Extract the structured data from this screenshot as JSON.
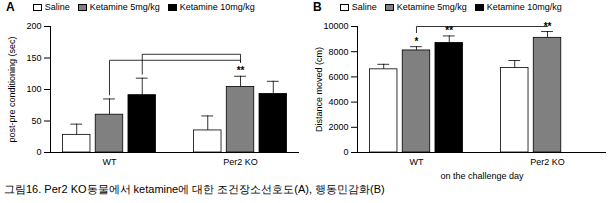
{
  "caption": "그림16. Per2 KO동물에서 ketamine에 대한 조건장소선호도(A), 행동민감화(B)",
  "chart_data": [
    {
      "type": "bar",
      "title": "A",
      "ylabel": "post-pre conditioning (sec)",
      "categories": [
        "WT",
        "Per2 KO"
      ],
      "series": [
        {
          "name": "Saline",
          "color": "#ffffff",
          "values": [
            28,
            35
          ],
          "errors": [
            17,
            23
          ]
        },
        {
          "name": "Ketamine 5mg/kg",
          "color": "#808080",
          "values": [
            60,
            104
          ],
          "errors": [
            25,
            17
          ]
        },
        {
          "name": "Ketamine 10mg/kg",
          "color": "#000000",
          "values": [
            91,
            93
          ],
          "errors": [
            27,
            20
          ]
        }
      ],
      "ylim": [
        0,
        200
      ],
      "yticks": [
        0,
        50,
        100,
        150,
        200
      ],
      "annotations": [
        {
          "text": "**",
          "category": "Per2 KO",
          "series": "Ketamine 5mg/kg"
        }
      ],
      "comparisons": [
        {
          "from": {
            "category": "WT",
            "series": "Ketamine 5mg/kg"
          },
          "to": {
            "category": "Per2 KO",
            "series": "Ketamine 5mg/kg"
          }
        },
        {
          "from": {
            "category": "WT",
            "series": "Ketamine 10mg/kg"
          },
          "to": {
            "category": "Per2 KO",
            "series": "Ketamine 5mg/kg"
          }
        }
      ]
    },
    {
      "type": "bar",
      "title": "B",
      "ylabel": "Distance moved (cm)",
      "xlabel": "on the challenge day",
      "categories": [
        "WT",
        "Per2 KO"
      ],
      "series": [
        {
          "name": "Saline",
          "color": "#ffffff",
          "values": [
            6600,
            6700
          ],
          "errors": [
            400,
            600
          ]
        },
        {
          "name": "Ketamine 5mg/kg",
          "color": "#808080",
          "values": [
            8100,
            9100
          ],
          "errors": [
            300,
            500
          ]
        },
        {
          "name": "Ketamine 10mg/kg",
          "color": "#000000",
          "values": [
            8700,
            null
          ],
          "errors": [
            550,
            null
          ]
        }
      ],
      "ylim": [
        0,
        10000
      ],
      "yticks": [
        0,
        2000,
        4000,
        6000,
        8000,
        10000
      ],
      "annotations": [
        {
          "text": "*",
          "category": "WT",
          "series": "Ketamine 5mg/kg"
        },
        {
          "text": "**",
          "category": "WT",
          "series": "Ketamine 10mg/kg"
        },
        {
          "text": "**",
          "category": "Per2 KO",
          "series": "Ketamine 5mg/kg"
        }
      ],
      "comparisons": [
        {
          "from": {
            "category": "WT",
            "series": "Ketamine 5mg/kg"
          },
          "to": {
            "category": "Per2 KO",
            "series": "Ketamine 5mg/kg"
          }
        }
      ]
    }
  ]
}
